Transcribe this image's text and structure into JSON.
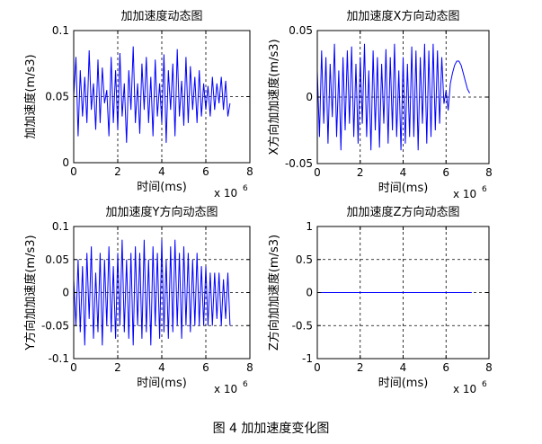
{
  "caption": "图 4 加加速度变化图",
  "chart_data": [
    {
      "type": "line",
      "title": "加加速度动态图",
      "xlabel": "时间(ms)",
      "ylabel": "加加速度(m/s3)",
      "x_exponent_label": "x 10",
      "x_exponent": "6",
      "xlim": [
        0,
        8
      ],
      "ylim": [
        0,
        0.1
      ],
      "xticks": [
        0,
        2,
        4,
        6,
        8
      ],
      "yticks": [
        0,
        0.05,
        0.1
      ],
      "xtick_labels": [
        "0",
        "2",
        "4",
        "6",
        "8"
      ],
      "ytick_labels": [
        "0",
        "0.05",
        "0.1"
      ],
      "grid": true,
      "line_color": "#0000ff",
      "series": [
        {
          "x": [
            0,
            0.1,
            0.2,
            0.3,
            0.4,
            0.5,
            0.6,
            0.7,
            0.8,
            0.9,
            1.0,
            1.1,
            1.2,
            1.3,
            1.4,
            1.5,
            1.6,
            1.7,
            1.8,
            1.9,
            2.0,
            2.1,
            2.2,
            2.3,
            2.4,
            2.5,
            2.6,
            2.7,
            2.8,
            2.9,
            3.0,
            3.1,
            3.2,
            3.3,
            3.4,
            3.5,
            3.6,
            3.7,
            3.8,
            3.9,
            4.0,
            4.1,
            4.2,
            4.3,
            4.4,
            4.5,
            4.6,
            4.7,
            4.8,
            4.9,
            5.0,
            5.1,
            5.2,
            5.3,
            5.4,
            5.5,
            5.6,
            5.7,
            5.8,
            5.9,
            6.0,
            6.1,
            6.2,
            6.3,
            6.4,
            6.5,
            6.6,
            6.7,
            6.8,
            6.9,
            7.0,
            7.1
          ],
          "y": [
            0.05,
            0.08,
            0.02,
            0.07,
            0.035,
            0.065,
            0.03,
            0.085,
            0.04,
            0.06,
            0.025,
            0.078,
            0.03,
            0.072,
            0.045,
            0.055,
            0.02,
            0.08,
            0.03,
            0.07,
            0.025,
            0.083,
            0.035,
            0.06,
            0.015,
            0.07,
            0.04,
            0.088,
            0.03,
            0.06,
            0.022,
            0.075,
            0.04,
            0.08,
            0.03,
            0.065,
            0.02,
            0.078,
            0.035,
            0.06,
            0.03,
            0.082,
            0.015,
            0.07,
            0.04,
            0.075,
            0.02,
            0.086,
            0.035,
            0.062,
            0.028,
            0.08,
            0.03,
            0.073,
            0.04,
            0.065,
            0.03,
            0.07,
            0.035,
            0.06,
            0.04,
            0.058,
            0.035,
            0.065,
            0.04,
            0.06,
            0.045,
            0.065,
            0.04,
            0.062,
            0.035,
            0.045
          ]
        }
      ]
    },
    {
      "type": "line",
      "title": "加加速度X方向动态图",
      "xlabel": "时间(ms)",
      "ylabel": "X方向加加速度(m/s3)",
      "x_exponent_label": "x 10",
      "x_exponent": "6",
      "xlim": [
        0,
        8
      ],
      "ylim": [
        -0.05,
        0.05
      ],
      "xticks": [
        0,
        2,
        4,
        6,
        8
      ],
      "yticks": [
        -0.05,
        0,
        0.05
      ],
      "xtick_labels": [
        "0",
        "2",
        "4",
        "6",
        "8"
      ],
      "ytick_labels": [
        "-0.05",
        "0",
        "0.05"
      ],
      "grid": true,
      "line_color": "#0000ff",
      "series": [
        {
          "x": [
            0,
            0.1,
            0.2,
            0.3,
            0.4,
            0.5,
            0.6,
            0.7,
            0.8,
            0.9,
            1.0,
            1.1,
            1.2,
            1.3,
            1.4,
            1.5,
            1.6,
            1.7,
            1.8,
            1.9,
            2.0,
            2.1,
            2.2,
            2.3,
            2.4,
            2.5,
            2.6,
            2.7,
            2.8,
            2.9,
            3.0,
            3.1,
            3.2,
            3.3,
            3.4,
            3.5,
            3.6,
            3.7,
            3.8,
            3.9,
            4.0,
            4.1,
            4.2,
            4.3,
            4.4,
            4.5,
            4.6,
            4.7,
            4.8,
            4.9,
            5.0,
            5.1,
            5.2,
            5.3,
            5.4,
            5.5,
            5.6,
            5.7,
            5.8,
            5.9,
            6.0,
            6.1,
            6.2,
            6.3,
            6.4,
            6.5,
            6.6,
            6.7,
            6.8,
            6.9,
            7.0,
            7.1
          ],
          "y": [
            0.02,
            -0.03,
            0.035,
            -0.02,
            0.03,
            -0.035,
            0.025,
            -0.015,
            0.04,
            -0.03,
            0.02,
            -0.04,
            0.03,
            -0.025,
            0.035,
            -0.02,
            0.038,
            -0.03,
            0.025,
            -0.035,
            0.03,
            -0.02,
            0.04,
            -0.03,
            0.02,
            -0.04,
            0.035,
            -0.025,
            0.03,
            -0.038,
            0.025,
            -0.02,
            0.036,
            -0.035,
            0.03,
            -0.025,
            0.04,
            -0.03,
            0.02,
            -0.04,
            0.03,
            -0.035,
            0.025,
            -0.03,
            0.038,
            -0.03,
            0.035,
            -0.04,
            0.03,
            -0.02,
            0.04,
            -0.035,
            0.035,
            -0.03,
            0.04,
            -0.025,
            0.035,
            -0.02,
            0.03,
            -0.005,
            0.005,
            -0.01,
            0.01,
            0.018,
            0.024,
            0.027,
            0.027,
            0.024,
            0.018,
            0.012,
            0.006,
            0.003
          ]
        }
      ]
    },
    {
      "type": "line",
      "title": "加加速度Y方向动态图",
      "xlabel": "时间(ms)",
      "ylabel": "Y方向加加速度(m/s3)",
      "x_exponent_label": "x 10",
      "x_exponent": "6",
      "xlim": [
        0,
        8
      ],
      "ylim": [
        -0.1,
        0.1
      ],
      "xticks": [
        0,
        2,
        4,
        6,
        8
      ],
      "yticks": [
        -0.1,
        -0.05,
        0,
        0.05,
        0.1
      ],
      "xtick_labels": [
        "0",
        "2",
        "4",
        "6",
        "8"
      ],
      "ytick_labels": [
        "-0.1",
        "-0.05",
        "0",
        "0.05",
        "0.1"
      ],
      "grid": true,
      "line_color": "#0000ff",
      "series": [
        {
          "x": [
            0,
            0.1,
            0.2,
            0.3,
            0.4,
            0.5,
            0.6,
            0.7,
            0.8,
            0.9,
            1.0,
            1.1,
            1.2,
            1.3,
            1.4,
            1.5,
            1.6,
            1.7,
            1.8,
            1.9,
            2.0,
            2.1,
            2.2,
            2.3,
            2.4,
            2.5,
            2.6,
            2.7,
            2.8,
            2.9,
            3.0,
            3.1,
            3.2,
            3.3,
            3.4,
            3.5,
            3.6,
            3.7,
            3.8,
            3.9,
            4.0,
            4.1,
            4.2,
            4.3,
            4.4,
            4.5,
            4.6,
            4.7,
            4.8,
            4.9,
            5.0,
            5.1,
            5.2,
            5.3,
            5.4,
            5.5,
            5.6,
            5.7,
            5.8,
            5.9,
            6.0,
            6.1,
            6.2,
            6.3,
            6.4,
            6.5,
            6.6,
            6.7,
            6.8,
            6.9,
            7.0,
            7.1
          ],
          "y": [
            0.02,
            -0.05,
            0.05,
            -0.06,
            0.04,
            -0.08,
            0.06,
            -0.04,
            0.07,
            -0.07,
            0.03,
            -0.06,
            0.06,
            -0.08,
            0.05,
            -0.05,
            0.07,
            -0.06,
            0.04,
            -0.07,
            0.06,
            -0.05,
            0.08,
            -0.06,
            0.05,
            -0.07,
            0.06,
            -0.08,
            0.07,
            -0.05,
            0.06,
            -0.07,
            0.08,
            -0.06,
            0.05,
            -0.08,
            0.07,
            -0.05,
            0.06,
            -0.07,
            0.08,
            -0.06,
            0.05,
            -0.07,
            0.07,
            -0.06,
            0.08,
            -0.05,
            0.06,
            -0.07,
            0.07,
            -0.05,
            0.06,
            -0.06,
            0.05,
            -0.05,
            0.06,
            -0.05,
            0.04,
            -0.05,
            0.04,
            -0.05,
            0.03,
            -0.05,
            0.03,
            -0.04,
            0.03,
            -0.05,
            0.02,
            -0.04,
            0.03,
            -0.05
          ]
        }
      ]
    },
    {
      "type": "line",
      "title": "加加速度Z方向动态图",
      "xlabel": "时间(ms)",
      "ylabel": "Z方向加加速度(m/s3)",
      "x_exponent_label": "x 10",
      "x_exponent": "6",
      "xlim": [
        0,
        8
      ],
      "ylim": [
        -1,
        1
      ],
      "xticks": [
        0,
        2,
        4,
        6,
        8
      ],
      "yticks": [
        -1,
        -0.5,
        0,
        0.5,
        1
      ],
      "xtick_labels": [
        "0",
        "2",
        "4",
        "6",
        "8"
      ],
      "ytick_labels": [
        "-1",
        "-0.5",
        "0",
        "0.5",
        "1"
      ],
      "grid": true,
      "line_color": "#0000ff",
      "series": [
        {
          "x": [
            0,
            7.2
          ],
          "y": [
            0,
            0
          ]
        }
      ]
    }
  ]
}
